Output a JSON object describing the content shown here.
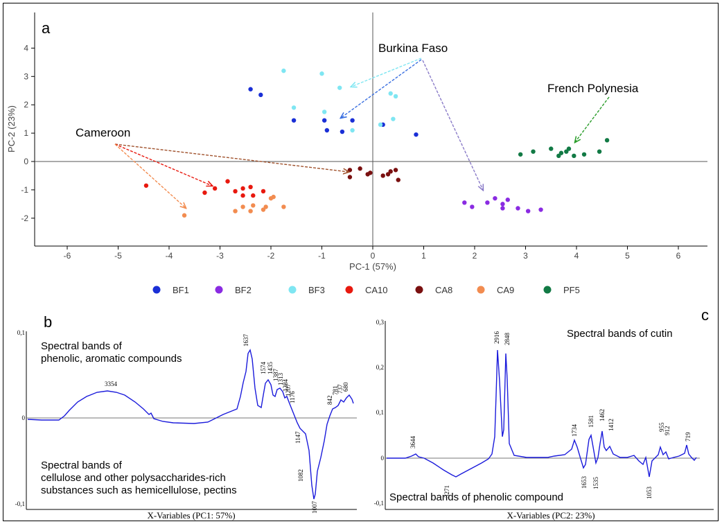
{
  "chart_data": [
    {
      "panel_label": "a",
      "type": "scatter",
      "xlabel": "PC-1 (57%)",
      "ylabel": "PC-2 (23%)",
      "xlim": [
        -6.7,
        6.8
      ],
      "ylim": [
        -2.9,
        4.8
      ],
      "xticks": [
        -6,
        -5,
        -4,
        -3,
        -2,
        -1,
        0,
        1,
        2,
        3,
        4,
        5,
        6
      ],
      "yticks": [
        -2,
        -1,
        0,
        1,
        2,
        3,
        4
      ],
      "legend_placement": "bottom",
      "series": [
        {
          "name": "BF1",
          "color": "#1a2fd6",
          "points": [
            [
              -2.4,
              2.55
            ],
            [
              -2.2,
              2.35
            ],
            [
              -1.55,
              1.45
            ],
            [
              -0.95,
              1.45
            ],
            [
              -0.9,
              1.1
            ],
            [
              -0.6,
              1.05
            ],
            [
              -0.4,
              1.45
            ],
            [
              0.2,
              1.3
            ],
            [
              0.85,
              0.95
            ]
          ]
        },
        {
          "name": "BF2",
          "color": "#8a2be2",
          "points": [
            [
              1.8,
              -1.45
            ],
            [
              1.95,
              -1.6
            ],
            [
              2.25,
              -1.45
            ],
            [
              2.4,
              -1.3
            ],
            [
              2.55,
              -1.5
            ],
            [
              2.55,
              -1.65
            ],
            [
              2.65,
              -1.35
            ],
            [
              2.85,
              -1.65
            ],
            [
              3.05,
              -1.75
            ],
            [
              3.3,
              -1.7
            ]
          ]
        },
        {
          "name": "BF3",
          "color": "#7fe6f2",
          "points": [
            [
              -1.75,
              3.2
            ],
            [
              -1.0,
              3.1
            ],
            [
              -0.65,
              2.6
            ],
            [
              -1.55,
              1.9
            ],
            [
              -0.95,
              1.75
            ],
            [
              0.35,
              2.4
            ],
            [
              0.45,
              2.3
            ],
            [
              0.4,
              1.5
            ],
            [
              -0.4,
              1.1
            ],
            [
              0.15,
              1.3
            ]
          ]
        },
        {
          "name": "CA10",
          "color": "#e8190f",
          "points": [
            [
              -4.45,
              -0.85
            ],
            [
              -3.3,
              -1.1
            ],
            [
              -3.1,
              -0.95
            ],
            [
              -2.85,
              -0.7
            ],
            [
              -2.7,
              -1.05
            ],
            [
              -2.55,
              -0.95
            ],
            [
              -2.4,
              -0.9
            ],
            [
              -2.15,
              -1.05
            ],
            [
              -2.55,
              -1.2
            ],
            [
              -2.35,
              -1.2
            ]
          ]
        },
        {
          "name": "CA8",
          "color": "#7a1010",
          "points": [
            [
              -0.45,
              -0.3
            ],
            [
              -0.25,
              -0.25
            ],
            [
              -0.05,
              -0.4
            ],
            [
              0.35,
              -0.35
            ],
            [
              0.45,
              -0.3
            ],
            [
              -0.45,
              -0.55
            ],
            [
              0.2,
              -0.5
            ],
            [
              0.3,
              -0.45
            ],
            [
              0.5,
              -0.65
            ],
            [
              -0.1,
              -0.45
            ]
          ]
        },
        {
          "name": "CA9",
          "color": "#f28c50",
          "points": [
            [
              -3.7,
              -1.9
            ],
            [
              -2.7,
              -1.75
            ],
            [
              -2.55,
              -1.6
            ],
            [
              -2.35,
              -1.55
            ],
            [
              -2.1,
              -1.6
            ],
            [
              -1.95,
              -1.25
            ],
            [
              -2.15,
              -1.7
            ],
            [
              -1.75,
              -1.6
            ],
            [
              -2.4,
              -1.75
            ],
            [
              -2.0,
              -1.3
            ]
          ]
        },
        {
          "name": "PF5",
          "color": "#127a45",
          "points": [
            [
              2.9,
              0.25
            ],
            [
              3.15,
              0.35
            ],
            [
              3.5,
              0.45
            ],
            [
              3.7,
              0.3
            ],
            [
              3.8,
              0.35
            ],
            [
              3.85,
              0.45
            ],
            [
              3.95,
              0.2
            ],
            [
              4.15,
              0.25
            ],
            [
              4.45,
              0.35
            ],
            [
              4.6,
              0.75
            ],
            [
              3.65,
              0.2
            ]
          ]
        }
      ],
      "annotations": [
        {
          "text": "Burkina Faso"
        },
        {
          "text": "French Polynesia"
        },
        {
          "text": "Cameroon"
        }
      ]
    },
    {
      "panel_label": "b",
      "type": "line",
      "xlabel": "X-Variables (PC1: 57%)",
      "yticks": [
        "0,1",
        "0",
        "-0,1"
      ],
      "annotations": [
        "Spectral bands of",
        "phenolic, aromatic compounds",
        "Spectral bands of",
        "cellulose and other polysaccharides-rich",
        "substances such as hemicellulose, pectins"
      ],
      "peak_labels": [
        "3354",
        "1637",
        "1574",
        "1435",
        "1387",
        "1313",
        "1284",
        "1207",
        "1176",
        "1147",
        "1082",
        "1007",
        "842",
        "781",
        "737",
        "680"
      ]
    },
    {
      "panel_label": "c",
      "type": "line",
      "xlabel": "X-Variables (PC2: 23%)",
      "yticks": [
        "0,3",
        "0,2",
        "0,1",
        "0",
        "-0,1"
      ],
      "annotations": [
        "Spectral bands of cutin",
        "Spectral bands of phenolic compound"
      ],
      "peak_labels": [
        "3644",
        "3271",
        "2916",
        "2848",
        "1734",
        "1653",
        "1581",
        "1535",
        "1462",
        "1412",
        "1053",
        "955",
        "912",
        "719"
      ]
    }
  ]
}
